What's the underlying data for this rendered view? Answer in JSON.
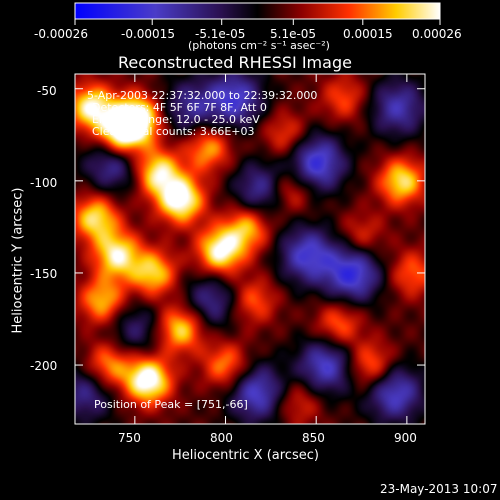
{
  "chart_data": {
    "type": "heatmap",
    "title": "Reconstructed RHESSI Image",
    "xlabel": "Heliocentric X (arcsec)",
    "ylabel": "Heliocentric Y (arcsec)",
    "xlim": [
      717,
      910
    ],
    "ylim": [
      -232,
      -42
    ],
    "xticks": [
      750,
      800,
      850,
      900
    ],
    "yticks": [
      -50,
      -100,
      -150,
      -200
    ],
    "colorbar": {
      "ticks": [
        "-0.00026",
        "-0.00015",
        "-5.1e-05",
        "5.1e-05",
        "0.00015",
        "0.00026"
      ],
      "tick_values": [
        -0.00026,
        -0.00015,
        -5.1e-05,
        5.1e-05,
        0.00015,
        0.00026
      ],
      "range": [
        -0.00026,
        0.00026
      ],
      "unit_label": "(photons cm⁻² s⁻¹ asec⁻²)"
    },
    "annotations": [
      "5-Apr-2003 22:37:32.000 to 22:39:32.000",
      "Detectors: 4F 5F 6F 7F 8F, Att 0",
      "Energy Range: 12.0 - 25.0 keV",
      "Clean      Total counts: 3.66E+03"
    ],
    "peak_text": "Position of Peak = [751,-66]",
    "peak": [
      751,
      -66
    ],
    "sources": [
      {
        "x": 751,
        "y": -66,
        "v": 1.0
      },
      {
        "x": 726,
        "y": -60,
        "v": 0.85
      },
      {
        "x": 742,
        "y": -75,
        "v": 0.9
      },
      {
        "x": 762,
        "y": -95,
        "v": 0.8
      },
      {
        "x": 775,
        "y": -110,
        "v": 0.95
      },
      {
        "x": 790,
        "y": -82,
        "v": 0.6
      },
      {
        "x": 797,
        "y": -138,
        "v": 0.9
      },
      {
        "x": 812,
        "y": -125,
        "v": 0.65
      },
      {
        "x": 728,
        "y": -120,
        "v": 0.75
      },
      {
        "x": 740,
        "y": -140,
        "v": 0.8
      },
      {
        "x": 760,
        "y": -150,
        "v": 0.7
      },
      {
        "x": 732,
        "y": -165,
        "v": 0.65
      },
      {
        "x": 775,
        "y": -180,
        "v": 0.75
      },
      {
        "x": 757,
        "y": -208,
        "v": 1.0
      },
      {
        "x": 735,
        "y": -200,
        "v": 0.6
      },
      {
        "x": 800,
        "y": -200,
        "v": 0.55
      },
      {
        "x": 815,
        "y": -165,
        "v": 0.45
      },
      {
        "x": 835,
        "y": -105,
        "v": 0.5
      },
      {
        "x": 833,
        "y": -75,
        "v": 0.4
      },
      {
        "x": 865,
        "y": -55,
        "v": 0.4
      },
      {
        "x": 897,
        "y": -100,
        "v": 0.75
      },
      {
        "x": 903,
        "y": -150,
        "v": 0.45
      },
      {
        "x": 862,
        "y": -178,
        "v": 0.5
      },
      {
        "x": 880,
        "y": -200,
        "v": 0.55
      },
      {
        "x": 840,
        "y": -220,
        "v": 0.35
      },
      {
        "x": 875,
        "y": -130,
        "v": 0.35
      }
    ],
    "negatives": [
      {
        "x": 738,
        "y": -90,
        "v": 0.6
      },
      {
        "x": 805,
        "y": -55,
        "v": 0.7
      },
      {
        "x": 850,
        "y": -90,
        "v": 0.8
      },
      {
        "x": 870,
        "y": -150,
        "v": 0.8
      },
      {
        "x": 845,
        "y": -140,
        "v": 0.7
      },
      {
        "x": 820,
        "y": -105,
        "v": 0.6
      },
      {
        "x": 895,
        "y": -60,
        "v": 0.6
      },
      {
        "x": 893,
        "y": -215,
        "v": 0.7
      },
      {
        "x": 855,
        "y": -200,
        "v": 0.7
      },
      {
        "x": 817,
        "y": -215,
        "v": 0.7
      },
      {
        "x": 792,
        "y": -165,
        "v": 0.5
      },
      {
        "x": 723,
        "y": -215,
        "v": 0.5
      },
      {
        "x": 750,
        "y": -180,
        "v": 0.4
      },
      {
        "x": 780,
        "y": -60,
        "v": 0.5
      }
    ]
  },
  "footer": {
    "timestamp": "23-May-2013 10:07"
  }
}
